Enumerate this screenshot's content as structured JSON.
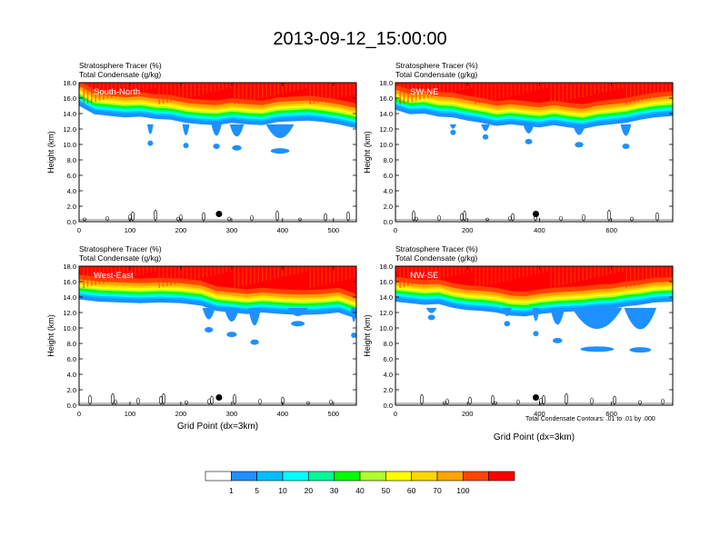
{
  "title": "2013-09-12_15:00:00",
  "footnote": "Total Condensate Contours: .01 to .01 by .000",
  "colors": {
    "levels": [
      "#ffffff",
      "#1e90ff",
      "#00bfff",
      "#00ffff",
      "#00fa9a",
      "#00ff00",
      "#adff2f",
      "#ffff00",
      "#ffd700",
      "#ffa500",
      "#ff4500",
      "#ff0000"
    ],
    "contour": "#000000"
  },
  "colorbar": {
    "labels": [
      "1",
      "5",
      "10",
      "20",
      "30",
      "40",
      "50",
      "60",
      "70",
      "100"
    ]
  },
  "chart_data": [
    {
      "type": "heatmap",
      "panel": "South-North",
      "title_lines": [
        "Stratosphere Tracer   (%)",
        "Total Condensate   (g/kg)"
      ],
      "ylabel": "Height (km)",
      "xlabel": "",
      "ylim": [
        0,
        18
      ],
      "yticks": [
        "0.0",
        "2.0",
        "4.0",
        "6.0",
        "8.0",
        "10.0",
        "12.0",
        "14.0",
        "16.0",
        "18.0"
      ],
      "xlim": [
        0,
        545
      ],
      "xticks": [
        0,
        100,
        200,
        300,
        400,
        500
      ],
      "marker": {
        "x": 275,
        "y": 1.0
      },
      "tracer_base_km": [
        [
          0,
          15.0
        ],
        [
          30,
          13.9
        ],
        [
          60,
          13.7
        ],
        [
          90,
          13.5
        ],
        [
          120,
          13.6
        ],
        [
          150,
          13.3
        ],
        [
          180,
          13.2
        ],
        [
          210,
          12.8
        ],
        [
          240,
          12.6
        ],
        [
          270,
          12.5
        ],
        [
          300,
          12.8
        ],
        [
          330,
          12.6
        ],
        [
          360,
          12.5
        ],
        [
          390,
          12.9
        ],
        [
          420,
          13.0
        ],
        [
          450,
          13.1
        ],
        [
          480,
          12.9
        ],
        [
          510,
          12.6
        ],
        [
          545,
          12.1
        ]
      ],
      "protrusions": [
        {
          "x": 140,
          "bottom": 10.4,
          "width": 12
        },
        {
          "x": 210,
          "bottom": 10.1,
          "width": 14
        },
        {
          "x": 270,
          "bottom": 10.0,
          "width": 20
        },
        {
          "x": 310,
          "bottom": 9.8,
          "width": 28
        },
        {
          "x": 395,
          "bottom": 9.4,
          "width": 55
        }
      ]
    },
    {
      "type": "heatmap",
      "panel": "SW-NE",
      "title_lines": [
        "Stratosphere Tracer   (%)",
        "Total Condensate   (g/kg)"
      ],
      "ylabel": "Height (km)",
      "xlabel": "",
      "ylim": [
        0,
        18
      ],
      "yticks": [
        "0.0",
        "2.0",
        "4.0",
        "6.0",
        "8.0",
        "10.0",
        "12.0",
        "14.0",
        "16.0",
        "18.0"
      ],
      "xlim": [
        0,
        770
      ],
      "xticks": [
        0,
        200,
        400,
        600
      ],
      "marker": {
        "x": 390,
        "y": 1.0
      },
      "tracer_base_km": [
        [
          0,
          14.5
        ],
        [
          40,
          13.9
        ],
        [
          80,
          14.0
        ],
        [
          120,
          13.6
        ],
        [
          160,
          13.5
        ],
        [
          200,
          13.1
        ],
        [
          240,
          12.8
        ],
        [
          280,
          12.4
        ],
        [
          320,
          12.6
        ],
        [
          360,
          12.4
        ],
        [
          400,
          12.2
        ],
        [
          440,
          12.5
        ],
        [
          480,
          12.2
        ],
        [
          520,
          12.0
        ],
        [
          560,
          12.4
        ],
        [
          600,
          12.6
        ],
        [
          640,
          12.8
        ],
        [
          680,
          13.2
        ],
        [
          720,
          13.5
        ],
        [
          770,
          13.7
        ]
      ],
      "protrusions": [
        {
          "x": 160,
          "bottom": 11.8,
          "width": 18
        },
        {
          "x": 250,
          "bottom": 11.2,
          "width": 24
        },
        {
          "x": 370,
          "bottom": 10.6,
          "width": 30
        },
        {
          "x": 510,
          "bottom": 10.2,
          "width": 36
        },
        {
          "x": 640,
          "bottom": 10.0,
          "width": 30
        }
      ]
    },
    {
      "type": "heatmap",
      "panel": "West-East",
      "title_lines": [
        "Stratosphere Tracer   (%)",
        "Total Condensate   (g/kg)"
      ],
      "ylabel": "Height (km)",
      "xlabel": "Grid Point (dx=3km)",
      "ylim": [
        0,
        18
      ],
      "yticks": [
        "0.0",
        "2.0",
        "4.0",
        "6.0",
        "8.0",
        "10.0",
        "12.0",
        "14.0",
        "16.0",
        "18.0"
      ],
      "xlim": [
        0,
        545
      ],
      "xticks": [
        0,
        100,
        200,
        300,
        400,
        500
      ],
      "marker": {
        "x": 275,
        "y": 1.0
      },
      "tracer_base_km": [
        [
          0,
          13.7
        ],
        [
          40,
          13.4
        ],
        [
          80,
          13.3
        ],
        [
          120,
          13.2
        ],
        [
          160,
          13.3
        ],
        [
          200,
          13.2
        ],
        [
          240,
          12.9
        ],
        [
          270,
          12.2
        ],
        [
          300,
          12.0
        ],
        [
          330,
          11.8
        ],
        [
          360,
          12.0
        ],
        [
          400,
          11.8
        ],
        [
          440,
          11.7
        ],
        [
          480,
          11.8
        ],
        [
          510,
          12.0
        ],
        [
          545,
          11.2
        ]
      ],
      "protrusions": [
        {
          "x": 255,
          "bottom": 10.0,
          "width": 25
        },
        {
          "x": 300,
          "bottom": 9.4,
          "width": 30
        },
        {
          "x": 345,
          "bottom": 8.4,
          "width": 25
        },
        {
          "x": 430,
          "bottom": 10.8,
          "width": 40
        },
        {
          "x": 540,
          "bottom": 9.3,
          "width": 12
        }
      ]
    },
    {
      "type": "heatmap",
      "panel": "NW-SE",
      "title_lines": [
        "Stratosphere Tracer   (%)",
        "Total Condensate   (g/kg)"
      ],
      "ylabel": "Height (km)",
      "xlabel": "Grid Point (dx=3km)",
      "ylim": [
        0,
        18
      ],
      "yticks": [
        "0.0",
        "2.0",
        "4.0",
        "6.0",
        "8.0",
        "10.0",
        "12.0",
        "14.0",
        "16.0",
        "18.0"
      ],
      "xlim": [
        0,
        770
      ],
      "xticks": [
        0,
        200,
        400,
        600
      ],
      "marker": {
        "x": 390,
        "y": 1.0
      },
      "tracer_base_km": [
        [
          0,
          13.4
        ],
        [
          40,
          13.2
        ],
        [
          80,
          13.0
        ],
        [
          120,
          13.1
        ],
        [
          160,
          12.6
        ],
        [
          200,
          12.3
        ],
        [
          240,
          12.2
        ],
        [
          280,
          12.0
        ],
        [
          320,
          11.6
        ],
        [
          360,
          11.5
        ],
        [
          400,
          11.8
        ],
        [
          440,
          12.0
        ],
        [
          480,
          12.1
        ],
        [
          520,
          12.2
        ],
        [
          560,
          12.4
        ],
        [
          600,
          12.5
        ],
        [
          640,
          12.8
        ],
        [
          680,
          13.0
        ],
        [
          720,
          13.3
        ],
        [
          770,
          13.4
        ]
      ],
      "protrusions": [
        {
          "x": 100,
          "bottom": 11.6,
          "width": 30
        },
        {
          "x": 310,
          "bottom": 10.8,
          "width": 25
        },
        {
          "x": 390,
          "bottom": 9.5,
          "width": 20
        },
        {
          "x": 450,
          "bottom": 8.6,
          "width": 40
        },
        {
          "x": 560,
          "bottom": 7.5,
          "width": 140
        },
        {
          "x": 680,
          "bottom": 7.4,
          "width": 90
        }
      ]
    }
  ]
}
